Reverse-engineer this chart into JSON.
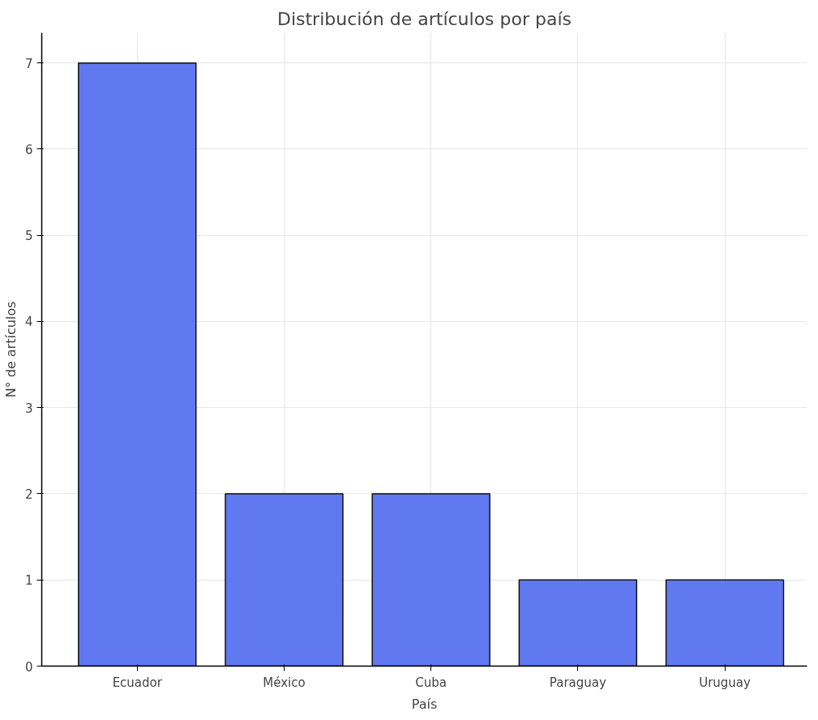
{
  "chart_data": {
    "type": "bar",
    "title": "Distribución de artículos por país",
    "xlabel": "País",
    "ylabel": "N° de artículos",
    "categories": [
      "Ecuador",
      "México",
      "Cuba",
      "Paraguay",
      "Uruguay"
    ],
    "values": [
      7,
      2,
      2,
      1,
      1
    ],
    "color": "#6079f0",
    "ylim": [
      0,
      7.35
    ],
    "yticks": [
      0,
      1,
      2,
      3,
      4,
      5,
      6,
      7
    ],
    "grid": true
  }
}
